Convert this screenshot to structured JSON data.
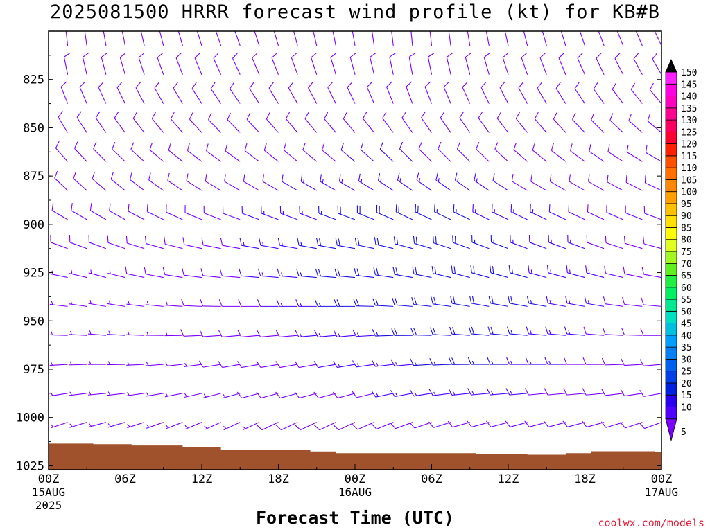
{
  "title": "2025081500 HRRR forecast wind profile (kt) for KB#B",
  "xlabel": "Forecast Time (UTC)",
  "credit": "coolwx.com/models",
  "chart_data": {
    "type": "wind_profile",
    "y_axis": {
      "ticks": [
        825,
        850,
        875,
        900,
        925,
        950,
        975,
        1000,
        1025
      ],
      "inverted": true,
      "range": [
        800,
        1027
      ]
    },
    "x_axis": {
      "range_hours": [
        0,
        48
      ],
      "ticks": [
        {
          "hour": 0,
          "label": "00Z",
          "sub1": "15AUG",
          "sub2": "2025"
        },
        {
          "hour": 6,
          "label": "06Z",
          "sub1": "",
          "sub2": ""
        },
        {
          "hour": 12,
          "label": "12Z",
          "sub1": "",
          "sub2": ""
        },
        {
          "hour": 18,
          "label": "18Z",
          "sub1": "",
          "sub2": ""
        },
        {
          "hour": 24,
          "label": "00Z",
          "sub1": "16AUG",
          "sub2": ""
        },
        {
          "hour": 30,
          "label": "06Z",
          "sub1": "",
          "sub2": ""
        },
        {
          "hour": 36,
          "label": "12Z",
          "sub1": "",
          "sub2": ""
        },
        {
          "hour": 42,
          "label": "18Z",
          "sub1": "",
          "sub2": ""
        },
        {
          "hour": 48,
          "label": "00Z",
          "sub1": "17AUG",
          "sub2": ""
        }
      ]
    },
    "surface_pressure": [
      [
        0,
        1013.5
      ],
      [
        2.5,
        1013.5
      ],
      [
        3.5,
        1013.8
      ],
      [
        6.5,
        1014.5
      ],
      [
        10.5,
        1015.5
      ],
      [
        13.5,
        1016.8
      ],
      [
        20.5,
        1017.6
      ],
      [
        22.5,
        1018.5
      ],
      [
        33.5,
        1019.0
      ],
      [
        37.5,
        1019.3
      ],
      [
        40.5,
        1018.5
      ],
      [
        42.5,
        1017.5
      ],
      [
        47.5,
        1018.0
      ],
      [
        48,
        1018.0
      ]
    ],
    "wind_levels": [
      807.5,
      822.5,
      837.5,
      852.5,
      867.5,
      882.5,
      897.5,
      912.5,
      927.5,
      942.5,
      957.5,
      972.5,
      987.5,
      1002.5
    ],
    "wind_direction_deg": [
      [
        355,
        350,
        340,
        330,
        320,
        315,
        300,
        290,
        280,
        275,
        270,
        265,
        260,
        250
      ],
      [
        350,
        345,
        335,
        325,
        315,
        310,
        300,
        290,
        285,
        280,
        275,
        270,
        265,
        255
      ],
      [
        345,
        340,
        330,
        320,
        310,
        305,
        295,
        285,
        280,
        275,
        270,
        265,
        260,
        250
      ],
      [
        340,
        335,
        325,
        315,
        305,
        300,
        290,
        280,
        275,
        270,
        265,
        260,
        255,
        245
      ],
      [
        345,
        340,
        330,
        320,
        310,
        300,
        290,
        280,
        275,
        270,
        265,
        260,
        255,
        245
      ],
      [
        350,
        345,
        335,
        320,
        310,
        300,
        290,
        280,
        275,
        270,
        265,
        260,
        255,
        245
      ],
      [
        355,
        350,
        340,
        325,
        315,
        305,
        295,
        285,
        280,
        275,
        270,
        265,
        260,
        250
      ],
      [
        350,
        345,
        335,
        325,
        315,
        305,
        295,
        290,
        285,
        280,
        275,
        270,
        265,
        255
      ],
      [
        345,
        340,
        330,
        320,
        310,
        300,
        295,
        290,
        285,
        280,
        275,
        270,
        265,
        255
      ],
      [
        340,
        335,
        325,
        315,
        305,
        300,
        295,
        290,
        285,
        280,
        275,
        270,
        265,
        255
      ],
      [
        335,
        330,
        320,
        310,
        300,
        295,
        290,
        285,
        280,
        275,
        270,
        265,
        260,
        250
      ]
    ],
    "wind_speed_kt": [
      [
        10,
        10,
        10,
        10,
        10,
        9,
        8,
        8,
        7,
        6,
        6,
        5,
        5,
        5
      ],
      [
        10,
        10,
        10,
        10,
        10,
        10,
        9,
        8,
        7,
        7,
        6,
        6,
        5,
        5
      ],
      [
        10,
        10,
        10,
        10,
        10,
        10,
        10,
        9,
        8,
        7,
        7,
        6,
        6,
        5
      ],
      [
        10,
        10,
        10,
        10,
        10,
        10,
        11,
        11,
        10,
        9,
        8,
        8,
        7,
        6
      ],
      [
        10,
        10,
        10,
        10,
        11,
        12,
        14,
        15,
        15,
        13,
        11,
        10,
        9,
        8
      ],
      [
        10,
        10,
        10,
        10,
        12,
        15,
        18,
        20,
        20,
        18,
        15,
        13,
        11,
        9
      ],
      [
        10,
        10,
        10,
        10,
        12,
        15,
        18,
        20,
        20,
        20,
        18,
        16,
        14,
        11
      ],
      [
        10,
        10,
        10,
        10,
        11,
        13,
        16,
        18,
        20,
        20,
        20,
        18,
        15,
        12
      ],
      [
        10,
        10,
        10,
        10,
        10,
        11,
        13,
        15,
        16,
        17,
        16,
        14,
        12,
        10
      ],
      [
        10,
        10,
        10,
        10,
        10,
        10,
        11,
        12,
        13,
        13,
        12,
        11,
        10,
        9
      ],
      [
        10,
        10,
        10,
        10,
        10,
        10,
        10,
        10,
        10,
        10,
        10,
        10,
        9,
        8
      ]
    ],
    "colorbar": {
      "labels": [
        "5",
        "10",
        "15",
        "20",
        "25",
        "30",
        "35",
        "40",
        "45",
        "50",
        "55",
        "60",
        "65",
        "70",
        "75",
        "80",
        "85",
        "90",
        "95",
        "100",
        "105",
        "110",
        "115",
        "120",
        "125",
        "130",
        "135",
        "140",
        "145",
        "150"
      ],
      "colors": [
        "#7a00ff",
        "#5000ff",
        "#2a00f0",
        "#0020e0",
        "#0040e8",
        "#0060f0",
        "#0080f8",
        "#00a0ff",
        "#00c0e0",
        "#00e0c0",
        "#00e890",
        "#00f060",
        "#20f040",
        "#60f020",
        "#a0f820",
        "#e0ff20",
        "#ffff00",
        "#ffe000",
        "#ffc000",
        "#ffa000",
        "#ff8800",
        "#ff7000",
        "#ff5000",
        "#ff2000",
        "#ff0030",
        "#ff0060",
        "#ff0090",
        "#ff00c0",
        "#ff00e0",
        "#ff20ff"
      ]
    }
  }
}
